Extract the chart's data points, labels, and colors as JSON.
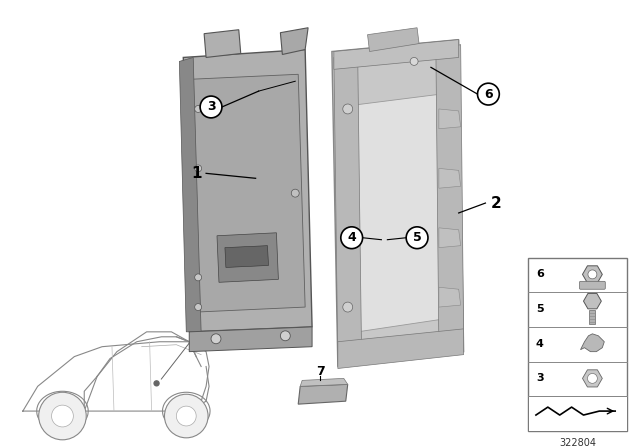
{
  "background_color": "#ffffff",
  "diagram_number": "322804",
  "part1_color": "#b8b8b8",
  "part1_edge": "#666666",
  "part2_color": "#c8c8c8",
  "part2_edge": "#777777",
  "label_circle_bg": "#ffffff",
  "label_circle_edge": "#000000"
}
